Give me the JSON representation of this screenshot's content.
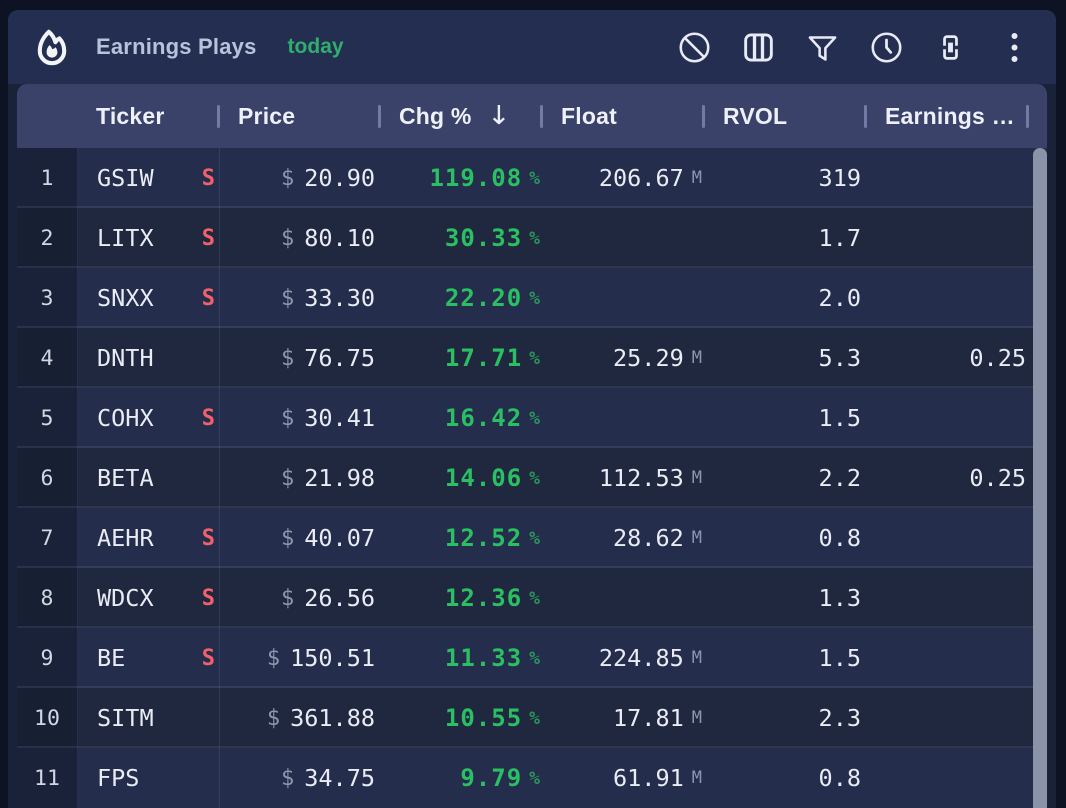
{
  "window": {
    "title": "Earnings Plays",
    "subtitle": "today",
    "logo_icon": "flame-icon"
  },
  "toolbar": {
    "icons": [
      {
        "name": "disable-icon"
      },
      {
        "name": "columns-icon"
      },
      {
        "name": "filter-icon"
      },
      {
        "name": "history-icon"
      },
      {
        "name": "link-icon"
      },
      {
        "name": "more-icon"
      }
    ]
  },
  "table": {
    "columns": [
      {
        "key": "rank",
        "label": ""
      },
      {
        "key": "ticker",
        "label": "Ticker"
      },
      {
        "key": "price",
        "label": "Price"
      },
      {
        "key": "chg",
        "label": "Chg %"
      },
      {
        "key": "float",
        "label": "Float"
      },
      {
        "key": "rvol",
        "label": "RVOL"
      },
      {
        "key": "earnings",
        "label": "Earnings …"
      }
    ],
    "sort": {
      "column": "chg",
      "direction": "desc",
      "arrow": "↓"
    },
    "currency_prefix": "$",
    "percent_suffix": "%",
    "million_suffix": "M",
    "short_badge": "S",
    "rows": [
      {
        "rank": "1",
        "ticker": "GSIW",
        "short": true,
        "price": "20.90",
        "chg": "119.08",
        "float": "206.67",
        "rvol": "319",
        "earnings": ""
      },
      {
        "rank": "2",
        "ticker": "LITX",
        "short": true,
        "price": "80.10",
        "chg": "30.33",
        "float": "",
        "rvol": "1.7",
        "earnings": ""
      },
      {
        "rank": "3",
        "ticker": "SNXX",
        "short": true,
        "price": "33.30",
        "chg": "22.20",
        "float": "",
        "rvol": "2.0",
        "earnings": ""
      },
      {
        "rank": "4",
        "ticker": "DNTH",
        "short": false,
        "price": "76.75",
        "chg": "17.71",
        "float": "25.29",
        "rvol": "5.3",
        "earnings": "0.25"
      },
      {
        "rank": "5",
        "ticker": "COHX",
        "short": true,
        "price": "30.41",
        "chg": "16.42",
        "float": "",
        "rvol": "1.5",
        "earnings": ""
      },
      {
        "rank": "6",
        "ticker": "BETA",
        "short": false,
        "price": "21.98",
        "chg": "14.06",
        "float": "112.53",
        "rvol": "2.2",
        "earnings": "0.25"
      },
      {
        "rank": "7",
        "ticker": "AEHR",
        "short": true,
        "price": "40.07",
        "chg": "12.52",
        "float": "28.62",
        "rvol": "0.8",
        "earnings": ""
      },
      {
        "rank": "8",
        "ticker": "WDCX",
        "short": true,
        "price": "26.56",
        "chg": "12.36",
        "float": "",
        "rvol": "1.3",
        "earnings": ""
      },
      {
        "rank": "9",
        "ticker": "BE",
        "short": true,
        "price": "150.51",
        "chg": "11.33",
        "float": "224.85",
        "rvol": "1.5",
        "earnings": ""
      },
      {
        "rank": "10",
        "ticker": "SITM",
        "short": false,
        "price": "361.88",
        "chg": "10.55",
        "float": "17.81",
        "rvol": "2.3",
        "earnings": ""
      },
      {
        "rank": "11",
        "ticker": "FPS",
        "short": false,
        "price": "34.75",
        "chg": "9.79",
        "float": "61.91",
        "rvol": "0.8",
        "earnings": ""
      }
    ]
  },
  "colors": {
    "page_background": "#0d1322",
    "card_background": "#1a2239",
    "titlebar_background": "#242e50",
    "header_background": "#3a4269",
    "row_background": "#20283f",
    "row_background_alt": "#242d4b",
    "positive_green": "#2bbf63",
    "short_red": "#f2606b",
    "muted_text": "#8e96af",
    "scrollbar_thumb": "#8b93a9",
    "data_text": "#e9ecf4"
  }
}
